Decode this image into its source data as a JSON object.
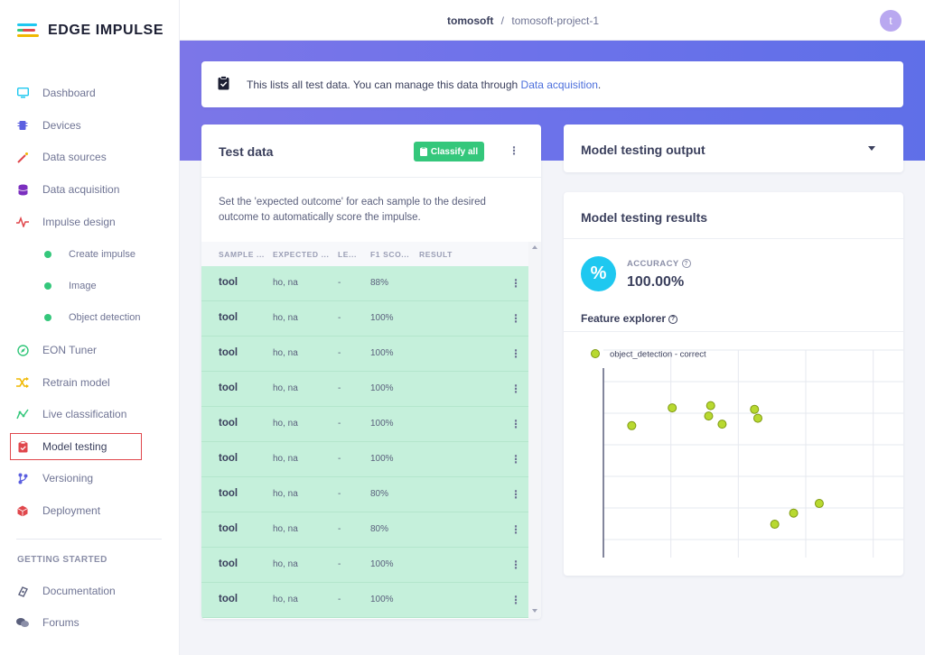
{
  "brand": {
    "name": "EDGE IMPULSE"
  },
  "header": {
    "org": "tomosoft",
    "separator": "/",
    "project": "tomosoft-project-1",
    "avatar_initial": "t"
  },
  "sidebar": {
    "items": [
      {
        "label": "Dashboard",
        "icon": "monitor-icon",
        "color": "#1ec8f0"
      },
      {
        "label": "Devices",
        "icon": "chip-icon",
        "color": "#5b5fe0"
      },
      {
        "label": "Data sources",
        "icon": "wand-icon",
        "color": "#e0474c"
      },
      {
        "label": "Data acquisition",
        "icon": "database-icon",
        "color": "#7b2fbf"
      },
      {
        "label": "Impulse design",
        "icon": "pulse-icon",
        "color": "#e0474c"
      },
      {
        "label": "Create impulse",
        "icon": "dot-icon",
        "color": "#34c77b"
      },
      {
        "label": "Image",
        "icon": "dot-icon",
        "color": "#34c77b"
      },
      {
        "label": "Object detection",
        "icon": "dot-icon",
        "color": "#34c77b"
      },
      {
        "label": "EON Tuner",
        "icon": "compass-icon",
        "color": "#34c77b"
      },
      {
        "label": "Retrain model",
        "icon": "shuffle-icon",
        "color": "#f0b800"
      },
      {
        "label": "Live classification",
        "icon": "chart-icon",
        "color": "#34c77b"
      },
      {
        "label": "Model testing",
        "icon": "clipboard-icon",
        "color": "#e0474c"
      },
      {
        "label": "Versioning",
        "icon": "branch-icon",
        "color": "#5b5fe0"
      },
      {
        "label": "Deployment",
        "icon": "box-icon",
        "color": "#e0474c"
      }
    ],
    "getting_started": {
      "title": "GETTING STARTED",
      "items": [
        {
          "label": "Documentation",
          "icon": "book-icon"
        },
        {
          "label": "Forums",
          "icon": "chat-icon"
        }
      ]
    }
  },
  "banner": {
    "text": "This lists all test data. You can manage this data through ",
    "link": "Data acquisition",
    "suffix": "."
  },
  "test_data": {
    "title": "Test data",
    "classify_label": "Classify all",
    "description": "Set the 'expected outcome' for each sample to the desired outcome to automatically score the impulse.",
    "columns": [
      "SAMPLE ...",
      "EXPECTED ...",
      "LE...",
      "F1 SCO...",
      "RESULT"
    ],
    "rows": [
      {
        "sample": "tool",
        "expected": "ho, na",
        "length": "-",
        "f1": "88%"
      },
      {
        "sample": "tool",
        "expected": "ho, na",
        "length": "-",
        "f1": "100%"
      },
      {
        "sample": "tool",
        "expected": "ho, na",
        "length": "-",
        "f1": "100%"
      },
      {
        "sample": "tool",
        "expected": "ho, na",
        "length": "-",
        "f1": "100%"
      },
      {
        "sample": "tool",
        "expected": "ho, na",
        "length": "-",
        "f1": "100%"
      },
      {
        "sample": "tool",
        "expected": "ho, na",
        "length": "-",
        "f1": "100%"
      },
      {
        "sample": "tool",
        "expected": "ho, na",
        "length": "-",
        "f1": "80%"
      },
      {
        "sample": "tool",
        "expected": "ho, na",
        "length": "-",
        "f1": "80%"
      },
      {
        "sample": "tool",
        "expected": "ho, na",
        "length": "-",
        "f1": "100%"
      },
      {
        "sample": "tool",
        "expected": "ho, na",
        "length": "-",
        "f1": "100%"
      }
    ]
  },
  "model_output": {
    "title": "Model testing output"
  },
  "model_results": {
    "title": "Model testing results",
    "accuracy_label": "ACCURACY",
    "accuracy_value": "100.00%",
    "feature_explorer_label": "Feature explorer",
    "legend": "object_detection - correct",
    "point_color": "#b8d930"
  },
  "chart_data": {
    "type": "scatter",
    "series": [
      {
        "name": "object_detection - correct",
        "points": [
          [
            0.42,
            0.58
          ],
          [
            1.02,
            0.82
          ],
          [
            1.59,
            0.85
          ],
          [
            1.56,
            0.71
          ],
          [
            1.76,
            0.6
          ],
          [
            2.24,
            0.8
          ],
          [
            2.29,
            0.68
          ],
          [
            2.54,
            -0.75
          ],
          [
            2.82,
            -0.6
          ],
          [
            3.2,
            -0.47
          ]
        ]
      }
    ],
    "xlim": [
      0,
      4.5
    ],
    "ylim": [
      -1.2,
      1.6
    ],
    "grid": true,
    "legend": "top-left"
  }
}
